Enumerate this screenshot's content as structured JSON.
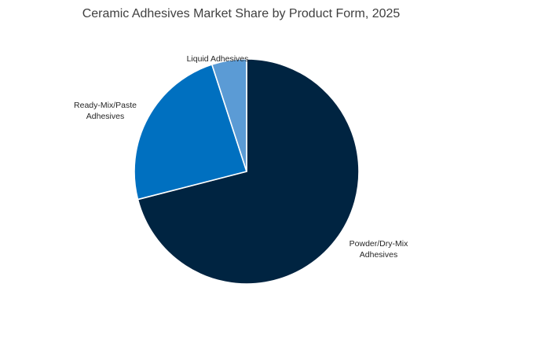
{
  "chart_data": {
    "type": "pie",
    "title": "Ceramic Adhesives Market Share by Product Form, 2025",
    "unit": "%",
    "slices": [
      {
        "label": "Powder/Dry-Mix Adhesives",
        "label_lines": [
          "Powder/Dry-Mix",
          "Adhesives"
        ],
        "value": 71,
        "color": "#002441"
      },
      {
        "label": "Ready-Mix/Paste Adhesives",
        "label_lines": [
          "Ready-Mix/Paste",
          "Adhesives"
        ],
        "value": 24,
        "color": "#0070c0"
      },
      {
        "label": "Liquid Adhesives",
        "label_lines": [
          "Liquid Adhesives"
        ],
        "value": 5,
        "color": "#5b9bd5"
      }
    ],
    "start_angle_deg": 0,
    "direction": "clockwise",
    "legend": "none",
    "slice_border_color": "#ffffff"
  }
}
